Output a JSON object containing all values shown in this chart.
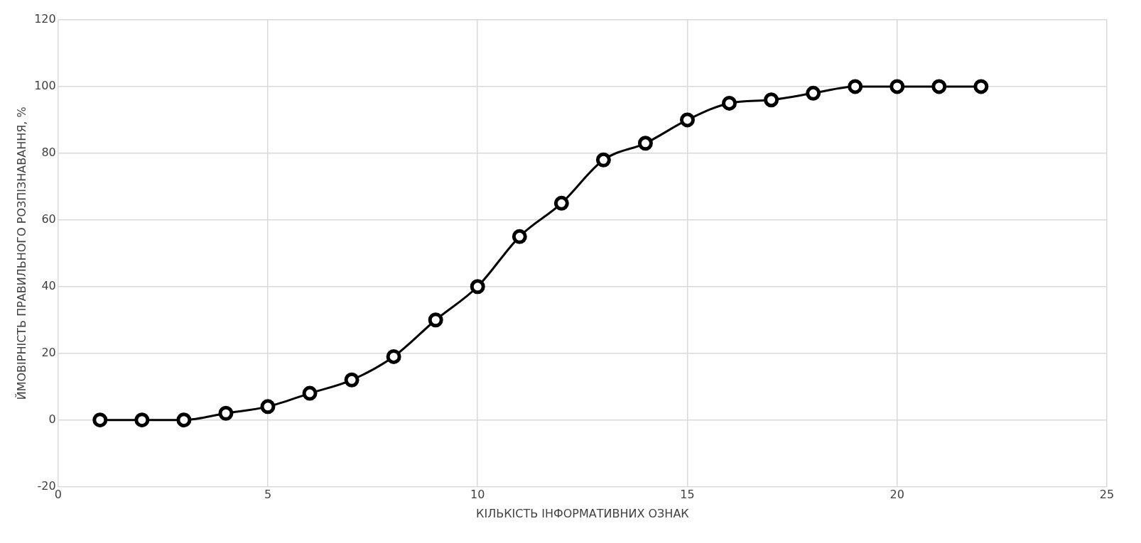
{
  "chart_data": {
    "type": "line",
    "xlabel": "КІЛЬКІСТЬ ІНФОРМАТИВНИХ ОЗНАК",
    "ylabel": "ЙМОВІРНІСТЬ ПРАВИЛЬНОГО РОЗПІЗНАВАННЯ, %",
    "series": [
      {
        "color": "#000000",
        "x": [
          1,
          2,
          3,
          4,
          5,
          6,
          7,
          8,
          9,
          10,
          11,
          12,
          13,
          14,
          15,
          16,
          17,
          18,
          19,
          20,
          21,
          22
        ],
        "values": [
          0,
          0,
          0,
          2,
          4,
          8,
          12,
          19,
          30,
          40,
          55,
          65,
          78,
          83,
          90,
          95,
          96,
          98,
          100,
          100,
          100,
          100
        ]
      }
    ],
    "xlim": [
      0,
      25
    ],
    "xticks": [
      0,
      5,
      10,
      15,
      20,
      25
    ],
    "ylim": [
      -20,
      120
    ],
    "yticks": [
      -20,
      0,
      20,
      40,
      60,
      80,
      100,
      120
    ],
    "grid": true,
    "marker": "circle",
    "line_style": "solid",
    "legend": false
  }
}
